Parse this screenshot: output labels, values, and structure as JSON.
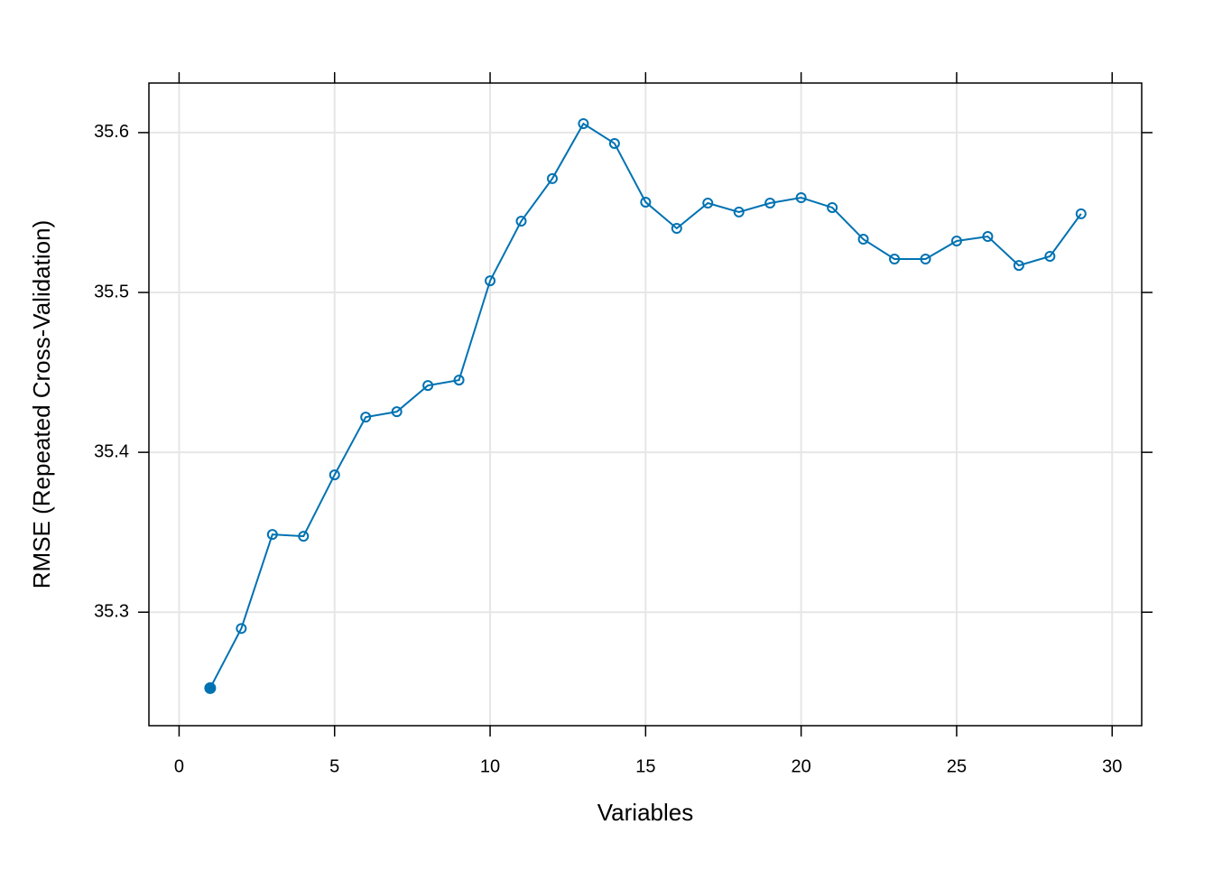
{
  "chart_data": {
    "type": "line",
    "x_label": "Variables",
    "y_label": "RMSE (Repeated Cross-Validation)",
    "x": [
      1,
      2,
      3,
      4,
      5,
      6,
      7,
      8,
      9,
      10,
      11,
      12,
      13,
      14,
      15,
      16,
      17,
      18,
      19,
      20,
      21,
      22,
      23,
      24,
      25,
      26,
      27,
      28,
      29
    ],
    "series": [
      {
        "color": "#0072b2",
        "values": [
          35.2525,
          35.2898,
          35.3486,
          35.3475,
          35.3859,
          35.422,
          35.4254,
          35.4418,
          35.4452,
          35.5073,
          35.5446,
          35.5712,
          35.6056,
          35.5932,
          35.5565,
          35.5401,
          35.5559,
          35.5503,
          35.5559,
          35.5593,
          35.5531,
          35.5333,
          35.5209,
          35.5209,
          35.5322,
          35.535,
          35.5169,
          35.5226,
          35.5492
        ],
        "highlight": 0
      }
    ],
    "xlim": [
      -0.97,
      30.95
    ],
    "ylim": [
      35.229,
      35.631
    ],
    "xticks": [
      0,
      5,
      10,
      15,
      20,
      25,
      30
    ],
    "yticks": [
      35.3,
      35.4,
      35.5,
      35.6
    ],
    "grid": true
  }
}
